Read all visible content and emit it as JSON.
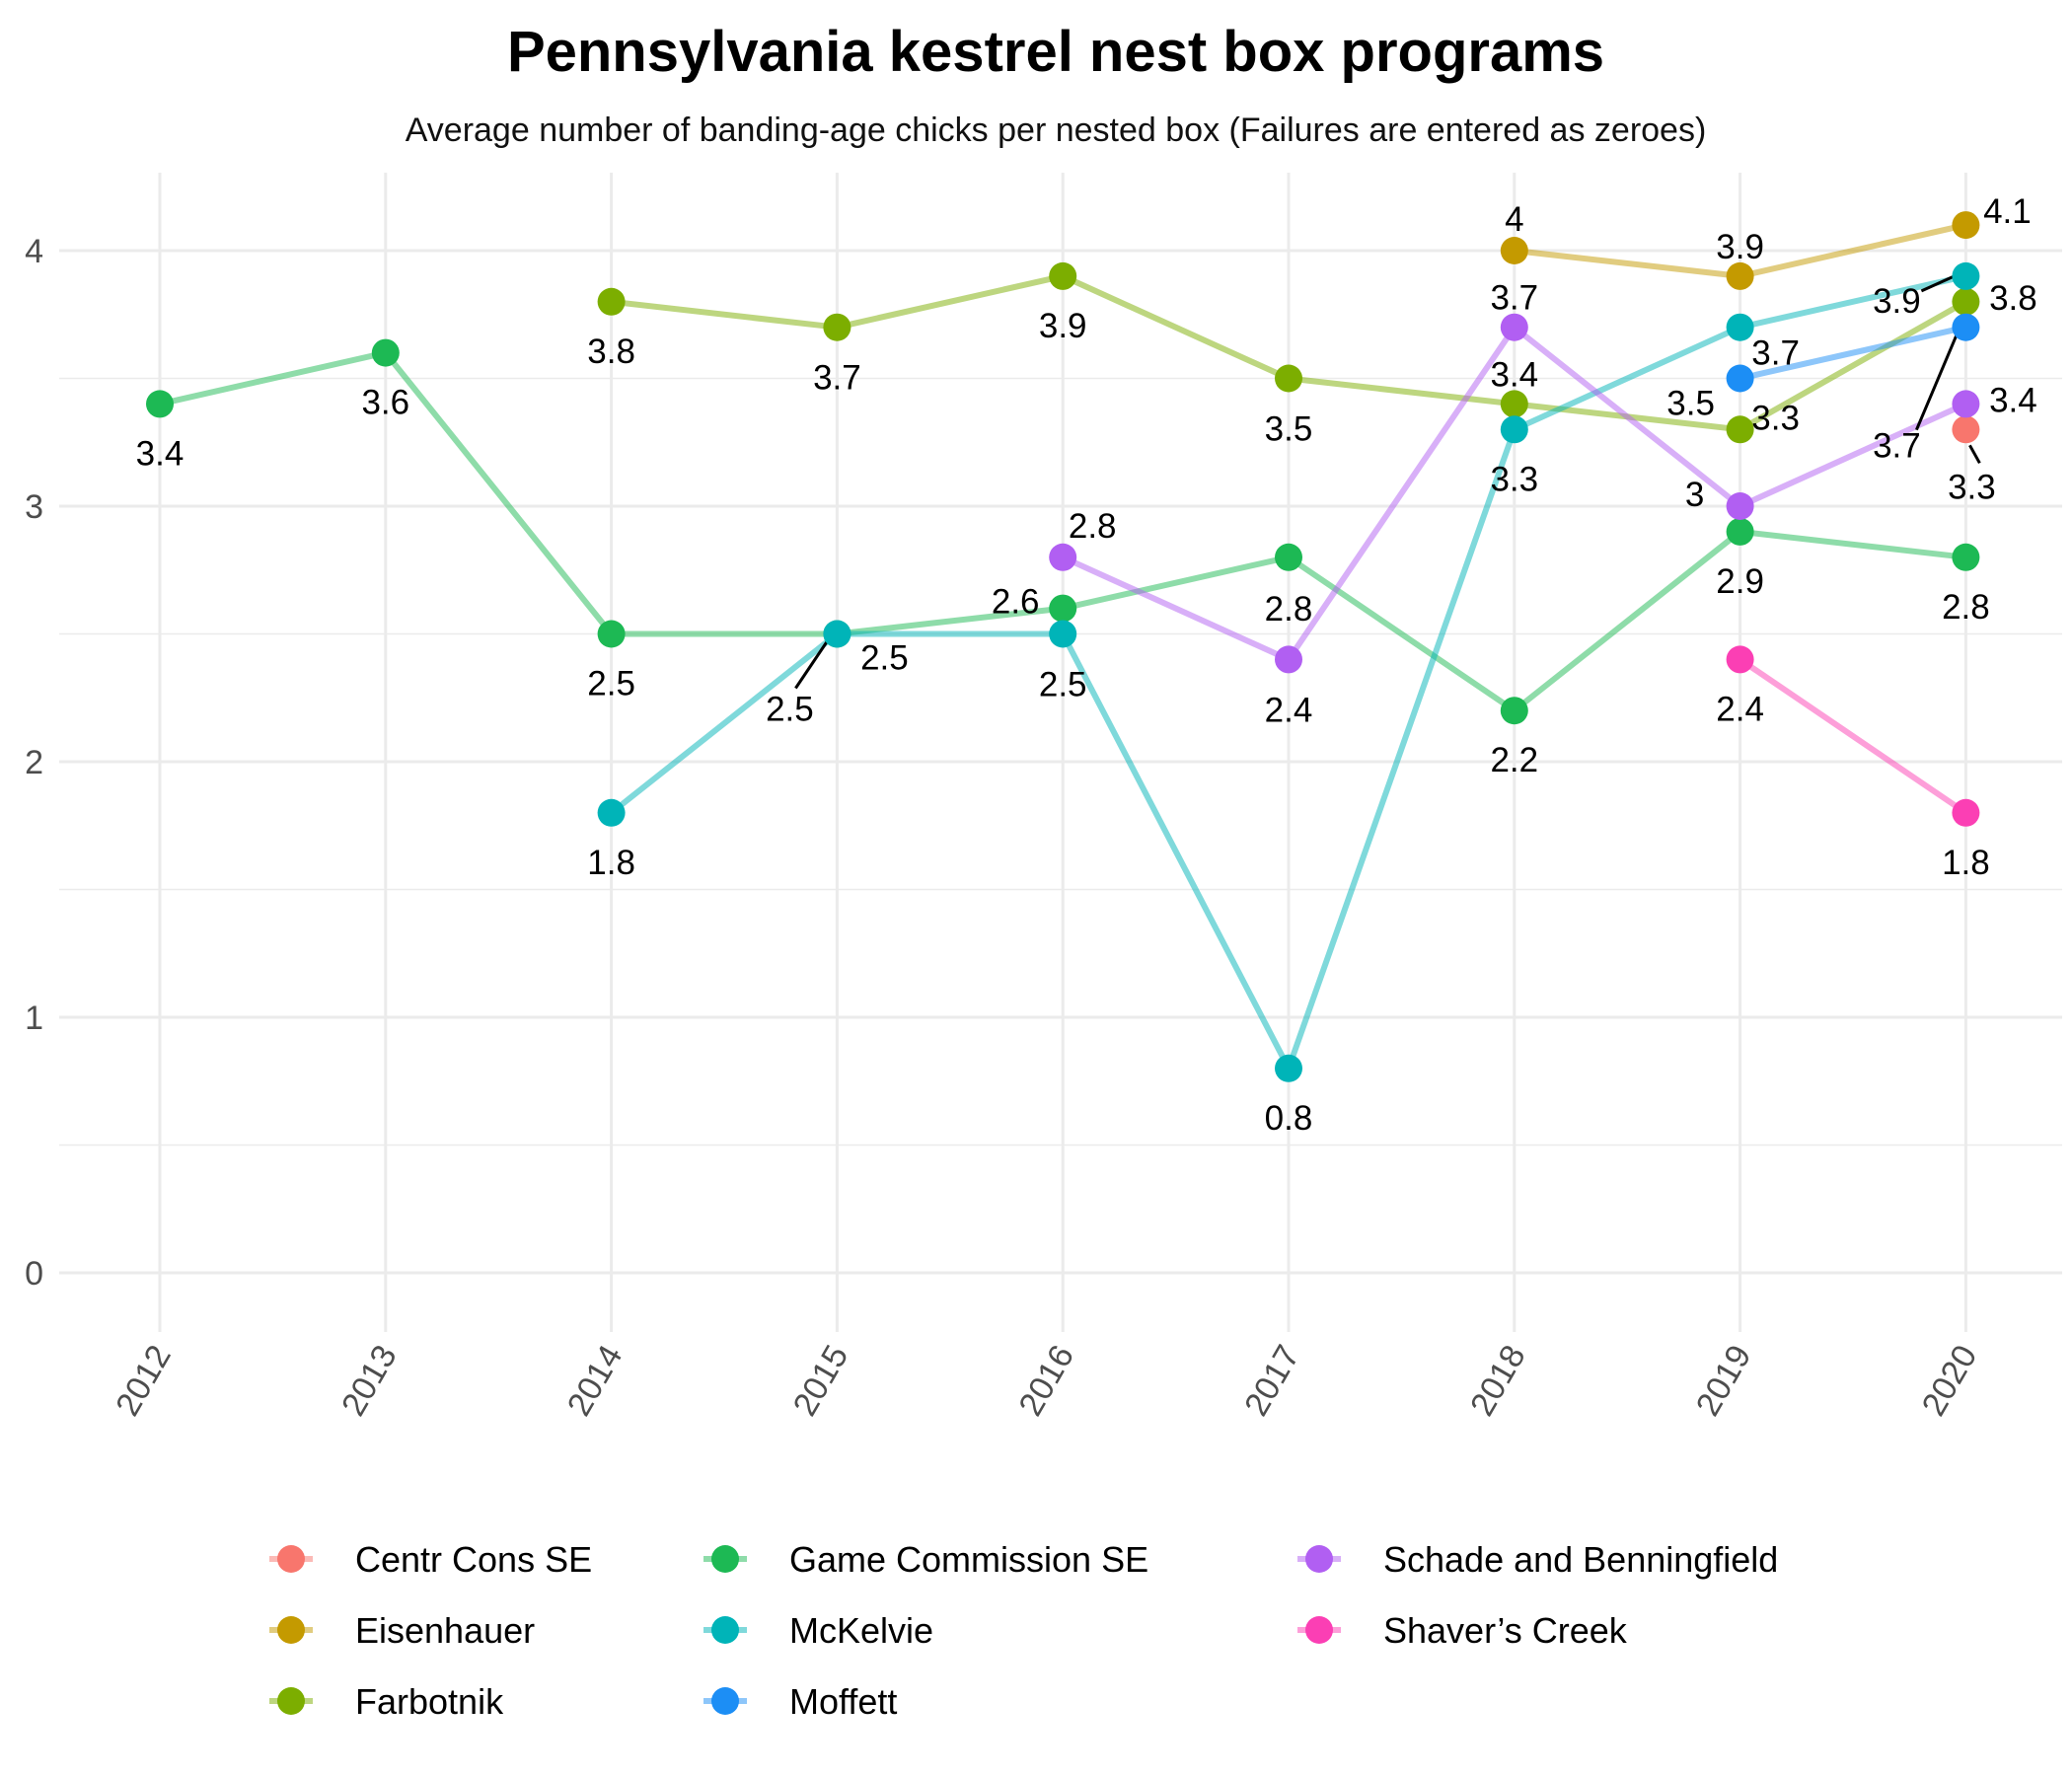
{
  "colors": {
    "Centr Cons SE": "#F8766D",
    "Eisenhauer": "#C49A00",
    "Farbotnik": "#53B400",
    "Game Commission SE": "#00C094",
    "McKelvie": "#00B6EB",
    "Moffett": "#A58AFF",
    "Schade and Benningfield": "#FB61D7",
    "Shaver’s Creek": "#FF61C3"
  },
  "chart_data": {
    "type": "line",
    "title": "Pennsylvania kestrel nest box programs",
    "subtitle": "Average number of banding-age chicks per nested box (Failures are entered as zeroes)",
    "xlabel": "",
    "ylabel": "",
    "x_ticks": [
      "2012",
      "2013",
      "2014",
      "2015",
      "2016",
      "2017",
      "2018",
      "2019",
      "2020"
    ],
    "y_ticks": [
      "0",
      "1",
      "2",
      "3",
      "4"
    ],
    "ylim": [
      -0.25,
      4.3
    ],
    "grid": true,
    "legend_position": "bottom",
    "series": [
      {
        "name": "Centr Cons SE",
        "color": "#F8766D",
        "points": [
          {
            "x": 2020,
            "y": 3.3
          }
        ]
      },
      {
        "name": "Eisenhauer",
        "color": "#C49A00",
        "points": [
          {
            "x": 2018,
            "y": 4.0
          },
          {
            "x": 2019,
            "y": 3.9
          },
          {
            "x": 2020,
            "y": 4.1
          }
        ]
      },
      {
        "name": "Farbotnik",
        "color": "#7CAE00",
        "points": [
          {
            "x": 2014,
            "y": 3.8
          },
          {
            "x": 2015,
            "y": 3.7
          },
          {
            "x": 2016,
            "y": 3.9
          },
          {
            "x": 2017,
            "y": 3.5
          },
          {
            "x": 2018,
            "y": 3.4
          },
          {
            "x": 2019,
            "y": 3.3
          },
          {
            "x": 2020,
            "y": 3.8
          }
        ]
      },
      {
        "name": "Game Commission SE",
        "color": "#1DB954",
        "points": [
          {
            "x": 2012,
            "y": 3.4
          },
          {
            "x": 2013,
            "y": 3.6
          },
          {
            "x": 2014,
            "y": 2.5
          },
          {
            "x": 2015,
            "y": 2.5
          },
          {
            "x": 2016,
            "y": 2.6
          },
          {
            "x": 2017,
            "y": 2.8
          },
          {
            "x": 2018,
            "y": 2.2
          },
          {
            "x": 2019,
            "y": 2.9
          },
          {
            "x": 2020,
            "y": 2.8
          }
        ]
      },
      {
        "name": "McKelvie",
        "color": "#00B4B8",
        "points": [
          {
            "x": 2014,
            "y": 1.8
          },
          {
            "x": 2015,
            "y": 2.5
          },
          {
            "x": 2016,
            "y": 2.5
          },
          {
            "x": 2017,
            "y": 0.8
          },
          {
            "x": 2018,
            "y": 3.3
          },
          {
            "x": 2019,
            "y": 3.7
          },
          {
            "x": 2020,
            "y": 3.9
          }
        ]
      },
      {
        "name": "Moffett",
        "color": "#1C8EF5",
        "points": [
          {
            "x": 2019,
            "y": 3.5
          },
          {
            "x": 2020,
            "y": 3.7
          }
        ]
      },
      {
        "name": "Schade and Benningfield",
        "color": "#B15FF2",
        "points": [
          {
            "x": 2016,
            "y": 2.8
          },
          {
            "x": 2017,
            "y": 2.4
          },
          {
            "x": 2018,
            "y": 3.7
          },
          {
            "x": 2019,
            "y": 3.0
          },
          {
            "x": 2020,
            "y": 3.4
          }
        ]
      },
      {
        "name": "Shaver’s Creek",
        "color": "#FB3FB4",
        "points": [
          {
            "x": 2019,
            "y": 2.4
          },
          {
            "x": 2020,
            "y": 1.8
          }
        ]
      }
    ],
    "data_labels": [
      {
        "x": 2012,
        "y": 3.4,
        "text": "3.4"
      },
      {
        "x": 2013,
        "y": 3.6,
        "text": "3.6"
      },
      {
        "x": 2014,
        "y": 3.8,
        "text": "3.8"
      },
      {
        "x": 2014,
        "y": 2.5,
        "text": "2.5"
      },
      {
        "x": 2014,
        "y": 1.8,
        "text": "1.8"
      },
      {
        "x": 2015,
        "y": 3.7,
        "text": "3.7"
      },
      {
        "x": 2015,
        "y": 2.5,
        "text": "2.5"
      },
      {
        "x": 2015,
        "y": 2.5,
        "text": "2.5"
      },
      {
        "x": 2016,
        "y": 3.9,
        "text": "3.9"
      },
      {
        "x": 2016,
        "y": 2.8,
        "text": "2.8"
      },
      {
        "x": 2016,
        "y": 2.6,
        "text": "2.6"
      },
      {
        "x": 2016,
        "y": 2.5,
        "text": "2.5"
      },
      {
        "x": 2017,
        "y": 3.5,
        "text": "3.5"
      },
      {
        "x": 2017,
        "y": 2.8,
        "text": "2.8"
      },
      {
        "x": 2017,
        "y": 2.4,
        "text": "2.4"
      },
      {
        "x": 2017,
        "y": 0.8,
        "text": "0.8"
      },
      {
        "x": 2018,
        "y": 4.0,
        "text": "4"
      },
      {
        "x": 2018,
        "y": 3.7,
        "text": "3.7"
      },
      {
        "x": 2018,
        "y": 3.4,
        "text": "3.4"
      },
      {
        "x": 2018,
        "y": 3.3,
        "text": "3.3"
      },
      {
        "x": 2018,
        "y": 2.2,
        "text": "2.2"
      },
      {
        "x": 2019,
        "y": 3.9,
        "text": "3.9"
      },
      {
        "x": 2019,
        "y": 3.7,
        "text": "3.7"
      },
      {
        "x": 2019,
        "y": 3.5,
        "text": "3.5"
      },
      {
        "x": 2019,
        "y": 3.3,
        "text": "3.3"
      },
      {
        "x": 2019,
        "y": 3.0,
        "text": "3"
      },
      {
        "x": 2019,
        "y": 2.9,
        "text": "2.9"
      },
      {
        "x": 2019,
        "y": 2.4,
        "text": "2.4"
      },
      {
        "x": 2020,
        "y": 4.1,
        "text": "4.1"
      },
      {
        "x": 2020,
        "y": 3.9,
        "text": "3.9"
      },
      {
        "x": 2020,
        "y": 3.8,
        "text": "3.8"
      },
      {
        "x": 2020,
        "y": 3.7,
        "text": "3.7"
      },
      {
        "x": 2020,
        "y": 3.4,
        "text": "3.4"
      },
      {
        "x": 2020,
        "y": 3.3,
        "text": "3.3"
      },
      {
        "x": 2020,
        "y": 2.8,
        "text": "2.8"
      },
      {
        "x": 2020,
        "y": 1.8,
        "text": "1.8"
      }
    ],
    "legend": [
      "Centr Cons SE",
      "Eisenhauer",
      "Farbotnik",
      "Game Commission SE",
      "McKelvie",
      "Moffett",
      "Schade and Benningfield",
      "Shaver’s Creek"
    ]
  }
}
